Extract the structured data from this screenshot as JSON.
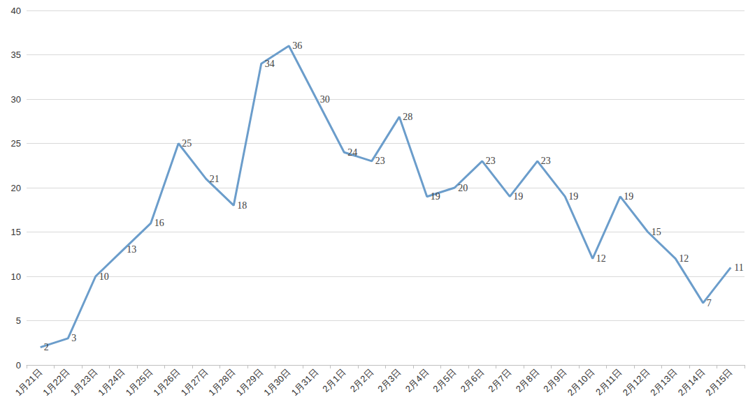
{
  "chart_data": {
    "type": "line",
    "categories": [
      "1月21日",
      "1月22日",
      "1月23日",
      "1月24日",
      "1月25日",
      "1月26日",
      "1月27日",
      "1月28日",
      "1月29日",
      "1月30日",
      "1月31日",
      "2月1日",
      "2月2日",
      "2月3日",
      "2月4日",
      "2月5日",
      "2月6日",
      "2月7日",
      "2月8日",
      "2月9日",
      "2月10日",
      "2月11日",
      "2月12日",
      "2月13日",
      "2月14日",
      "2月15日"
    ],
    "values": [
      2,
      3,
      10,
      13,
      16,
      25,
      21,
      18,
      34,
      36,
      30,
      24,
      23,
      28,
      19,
      20,
      23,
      19,
      23,
      19,
      12,
      19,
      15,
      12,
      7,
      11
    ],
    "color": "#6b9dcb",
    "ylim": [
      0,
      40
    ],
    "yticks": [
      0,
      5,
      10,
      15,
      20,
      25,
      30,
      35,
      40
    ],
    "grid": true,
    "data_labels": true
  }
}
